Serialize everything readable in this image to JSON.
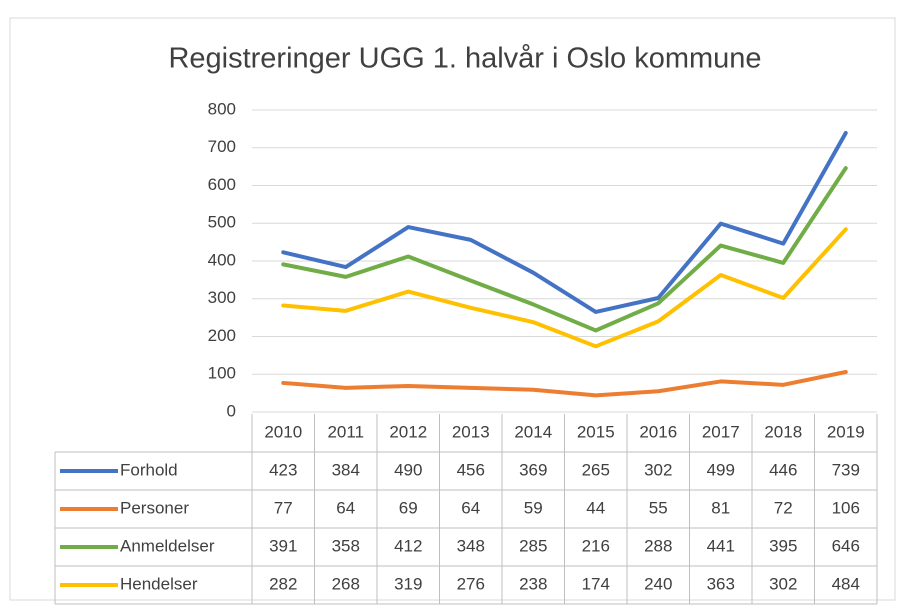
{
  "chart_data": {
    "type": "line",
    "title": "Registreringer UGG 1. halvår i Oslo kommune",
    "categories": [
      "2010",
      "2011",
      "2012",
      "2013",
      "2014",
      "2015",
      "2016",
      "2017",
      "2018",
      "2019"
    ],
    "series": [
      {
        "name": "Forhold",
        "color": "#4472c4",
        "values": [
          423,
          384,
          490,
          456,
          369,
          265,
          302,
          499,
          446,
          739
        ]
      },
      {
        "name": "Personer",
        "color": "#ed7d31",
        "values": [
          77,
          64,
          69,
          64,
          59,
          44,
          55,
          81,
          72,
          106
        ]
      },
      {
        "name": "Anmeldelser",
        "color": "#70ad47",
        "values": [
          391,
          358,
          412,
          348,
          285,
          216,
          288,
          441,
          395,
          646
        ]
      },
      {
        "name": "Hendelser",
        "color": "#ffc000",
        "values": [
          282,
          268,
          319,
          276,
          238,
          174,
          240,
          363,
          302,
          484
        ]
      }
    ],
    "ylim": [
      0,
      800
    ],
    "yticks": [
      0,
      100,
      200,
      300,
      400,
      500,
      600,
      700,
      800
    ],
    "grid": true
  }
}
